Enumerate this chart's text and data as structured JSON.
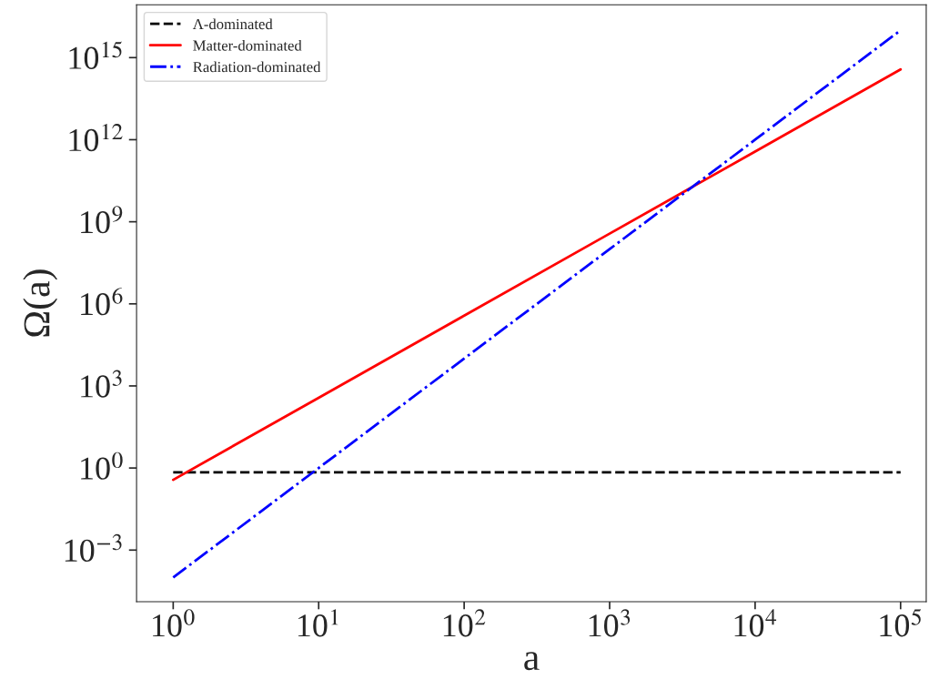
{
  "chart_data": {
    "type": "line",
    "xlabel": "a",
    "ylabel": "Ω(a)",
    "log": "xy",
    "grid": false,
    "legend": "top left",
    "x": [
      1,
      10,
      100,
      1000,
      10000,
      100000
    ],
    "series": [
      {
        "name": "Λ-dominated",
        "color": "#000000",
        "line_style": "dashed",
        "values": [
          0.7,
          0.7,
          0.7,
          0.7,
          0.7,
          0.7
        ]
      },
      {
        "name": "Matter-dominated",
        "color": "#ff0000",
        "line_style": "solid",
        "values": [
          0.37,
          370,
          370000,
          370000000,
          370000000000,
          370000000000000
        ]
      },
      {
        "name": "Radiation-dominated",
        "color": "#0000ff",
        "line_style": "dashdot",
        "values": [
          0.0001,
          1,
          10000,
          100000000,
          1000000000000,
          10000000000000000
        ]
      }
    ],
    "xlim": [
      0.56,
      150000
    ],
    "ylim": [
      1.3e-05,
      8.5e+16
    ],
    "xticks": [
      {
        "value": 1,
        "label": "10$^{0}$"
      },
      {
        "value": 10,
        "label": "10$^{1}$"
      },
      {
        "value": 100,
        "label": "10$^{2}$"
      },
      {
        "value": 1000,
        "label": "10$^{3}$"
      },
      {
        "value": 10000,
        "label": "10$^{4}$"
      },
      {
        "value": 100000,
        "label": "10$^{5}$"
      }
    ],
    "yticks": [
      {
        "value": 0.001,
        "label": "10$^{−3}$"
      },
      {
        "value": 1,
        "label": "10$^{0}$"
      },
      {
        "value": 1000,
        "label": "10$^{3}$"
      },
      {
        "value": 1000000,
        "label": "10$^{6}$"
      },
      {
        "value": 1000000000,
        "label": "10$^{9}$"
      },
      {
        "value": 1000000000000,
        "label": "10$^{12}$"
      },
      {
        "value": 1000000000000000,
        "label": "10$^{15}$"
      }
    ]
  }
}
